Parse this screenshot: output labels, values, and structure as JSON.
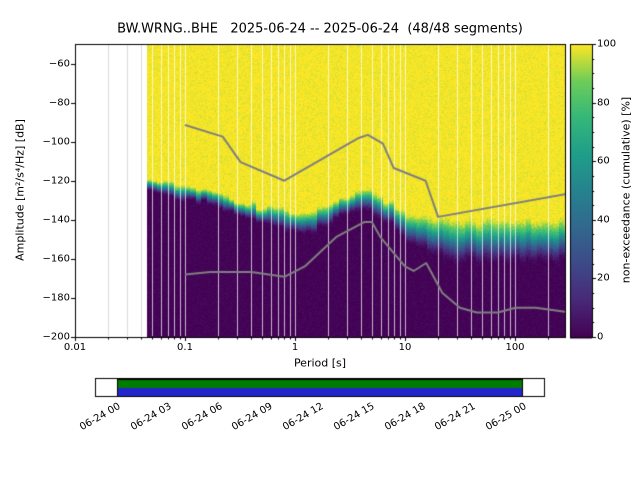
{
  "title": "BW.WRNG..BHE   2025-06-24 -- 2025-06-24  (48/48 segments)",
  "station": "BW.WRNG..BHE",
  "date_range": "2025-06-24 -- 2025-06-24",
  "segments": "48/48 segments",
  "chart_data": {
    "type": "heatmap",
    "title": "BW.WRNG..BHE   2025-06-24 -- 2025-06-24  (48/48 segments)",
    "xlabel": "Period [s]",
    "ylabel": "Amplitude [m²/s⁴/Hz] [dB]",
    "colorbar_label": "non-exceedance (cumulative) [%]",
    "x_scale": "log",
    "xlim": [
      0.01,
      285
    ],
    "ylim": [
      -200,
      -50
    ],
    "clim": [
      0,
      100
    ],
    "grid": "vertical-log",
    "legend": "none",
    "xticks": [
      "0.01",
      "0.1",
      "1",
      "10",
      "100"
    ],
    "yticks": [
      "−60",
      "−80",
      "−100",
      "−120",
      "−140",
      "−160",
      "−180",
      "−200"
    ],
    "cticks": [
      "0",
      "20",
      "40",
      "60",
      "80",
      "100"
    ],
    "data_period_range": [
      0.045,
      285
    ],
    "ppsd_profile": {
      "comment": "cumulative non-exceedance field: yellow(100%) above, purple(0%) below; center = median PSD dB, halfwidth = spread",
      "periods": [
        0.045,
        0.07,
        0.1,
        0.15,
        0.22,
        0.35,
        0.5,
        0.7,
        1.0,
        1.5,
        2.2,
        3.2,
        4.5,
        6,
        8,
        10,
        14,
        20,
        30,
        50,
        90,
        160,
        285
      ],
      "center_db": [
        -121,
        -124,
        -126,
        -128.5,
        -131,
        -134.5,
        -137,
        -139.5,
        -141.5,
        -140,
        -136.5,
        -132,
        -130,
        -133,
        -138.5,
        -143,
        -146.5,
        -148.5,
        -150,
        -151,
        -151,
        -150.5,
        -150.5
      ],
      "halfwidth_db": [
        4,
        4,
        4,
        4.2,
        4.4,
        4.6,
        5,
        5.5,
        6,
        6,
        6,
        5.5,
        5.5,
        6.5,
        7.5,
        8.5,
        10,
        11.5,
        12.5,
        13,
        12.5,
        12,
        11.5
      ]
    },
    "noise_models": {
      "high": {
        "name": "Peterson NHNM",
        "periods": [
          0.1,
          0.22,
          0.32,
          0.8,
          3.8,
          4.6,
          6.3,
          7.9,
          15.4,
          20.0,
          354.8
        ],
        "db": [
          -91.5,
          -97.4,
          -110.5,
          -120.0,
          -98.1,
          -96.5,
          -101.0,
          -113.5,
          -120.0,
          -138.5,
          -126.0
        ]
      },
      "low": {
        "name": "Peterson NLNM",
        "periods": [
          0.1,
          0.17,
          0.4,
          0.8,
          1.24,
          2.4,
          4.3,
          5.0,
          6.0,
          10.0,
          12.0,
          15.6,
          21.9,
          31.6,
          45.0,
          70.0,
          101.0,
          154.0,
          328.0
        ],
        "db": [
          -168.0,
          -166.7,
          -166.7,
          -169.2,
          -163.7,
          -148.6,
          -141.1,
          -141.1,
          -149.0,
          -163.8,
          -166.2,
          -162.1,
          -177.5,
          -185.0,
          -187.5,
          -187.5,
          -185.0,
          -185.0,
          -187.5
        ]
      }
    },
    "colormap": "viridis",
    "colormap_stops": [
      [
        0.0,
        "#440154"
      ],
      [
        0.125,
        "#482878"
      ],
      [
        0.25,
        "#3e4a89"
      ],
      [
        0.375,
        "#31688e"
      ],
      [
        0.5,
        "#26828e"
      ],
      [
        0.625,
        "#1f9e89"
      ],
      [
        0.75,
        "#35b779"
      ],
      [
        0.875,
        "#6dcd59"
      ],
      [
        1.0,
        "#fde725"
      ]
    ],
    "colors": {
      "noise_model": "#7f7f7f",
      "background": "#ffffff",
      "axes": "#000000"
    }
  },
  "timeline": {
    "labels": [
      "06-24 00",
      "06-24 03",
      "06-24 06",
      "06-24 09",
      "06-24 12",
      "06-24 15",
      "06-24 18",
      "06-24 21",
      "06-25 00"
    ],
    "green": "#007c00",
    "blue": "#2424cc",
    "frame": "#000000"
  }
}
